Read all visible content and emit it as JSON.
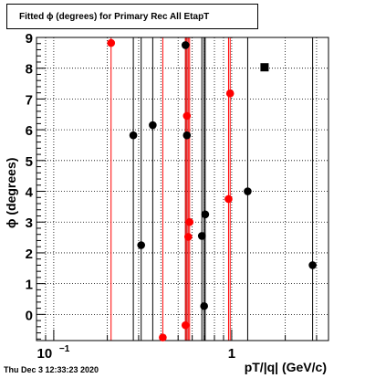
{
  "title": "Fitted ϕ (degrees) for Primary Rec All EtapT",
  "timestamp": "Thu Dec  3 12:33:23 2020",
  "chart_data": {
    "type": "scatter",
    "title": "Fitted ϕ (degrees) for Primary Rec All EtapT",
    "xlabel": "pT/|q| (GeV/c)",
    "ylabel": "ϕ (degrees)",
    "xscale": "log",
    "xlim": [
      0.08,
      3.5
    ],
    "ylim": [
      -0.85,
      9.0
    ],
    "grid": true,
    "x_tick_labels": [
      {
        "value": 0.1,
        "base": "10",
        "exp": "−1"
      },
      {
        "value": 1,
        "base": "1",
        "exp": ""
      }
    ],
    "y_ticks": [
      0,
      1,
      2,
      3,
      4,
      5,
      6,
      7,
      8,
      9
    ],
    "series": [
      {
        "color": "#000000",
        "marker": "circle",
        "points": [
          {
            "x": 0.28,
            "y": 5.82,
            "ylow": -0.85,
            "yhigh": 9.0
          },
          {
            "x": 0.31,
            "y": 2.25,
            "ylow": -0.85,
            "yhigh": 9.0
          },
          {
            "x": 0.36,
            "y": 6.15,
            "ylow": -0.85,
            "yhigh": 9.0
          },
          {
            "x": 0.55,
            "y": 8.75,
            "ylow": -0.85,
            "yhigh": 9.0
          },
          {
            "x": 0.56,
            "y": 5.82,
            "ylow": -0.85,
            "yhigh": 9.0
          },
          {
            "x": 0.68,
            "y": 2.55,
            "ylow": -0.85,
            "yhigh": 9.0
          },
          {
            "x": 0.71,
            "y": 3.25,
            "ylow": -0.85,
            "yhigh": 9.0
          },
          {
            "x": 0.7,
            "y": 0.27,
            "ylow": -0.85,
            "yhigh": 9.0
          },
          {
            "x": 1.23,
            "y": 4.0,
            "ylow": -0.85,
            "yhigh": 9.0
          },
          {
            "x": 2.85,
            "y": 1.6,
            "ylow": -0.85,
            "yhigh": 9.0
          }
        ]
      },
      {
        "color": "#ff0000",
        "marker": "circle",
        "points": [
          {
            "x": 0.21,
            "y": 8.82,
            "ylow": -0.85,
            "yhigh": 9.0
          },
          {
            "x": 0.41,
            "y": -0.75,
            "ylow": -0.85,
            "yhigh": 9.0
          },
          {
            "x": 0.55,
            "y": -0.35,
            "ylow": -0.85,
            "yhigh": 9.0
          },
          {
            "x": 0.56,
            "y": 6.45,
            "ylow": -0.85,
            "yhigh": 9.0
          },
          {
            "x": 0.57,
            "y": 2.52,
            "ylow": -0.85,
            "yhigh": 9.0
          },
          {
            "x": 0.58,
            "y": 3.0,
            "ylow": -0.85,
            "yhigh": 9.0
          },
          {
            "x": 0.96,
            "y": 3.75,
            "ylow": -0.85,
            "yhigh": 9.0
          },
          {
            "x": 0.98,
            "y": 7.18,
            "ylow": -0.85,
            "yhigh": 9.0
          }
        ]
      },
      {
        "color": "#000000",
        "marker": "square",
        "points": [
          {
            "x": 1.53,
            "y": 8.03
          }
        ]
      }
    ]
  }
}
